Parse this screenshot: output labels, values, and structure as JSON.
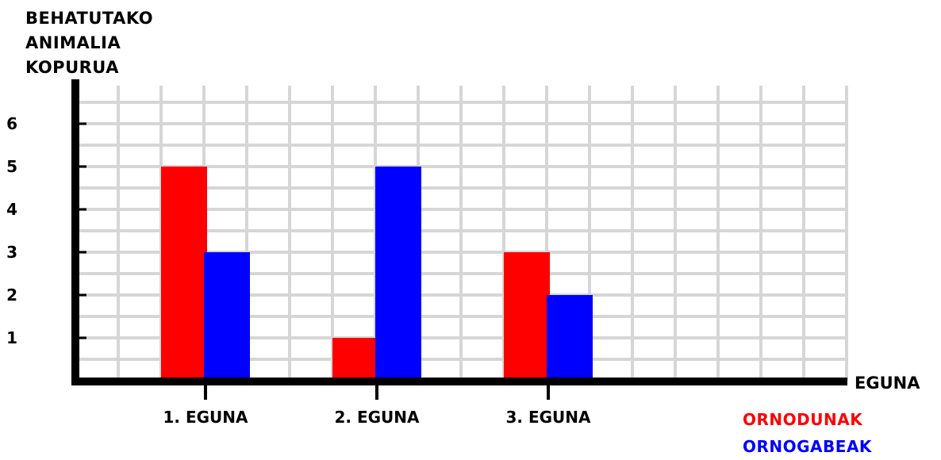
{
  "chart_data": {
    "type": "bar",
    "ylabel_lines": [
      "BEHATUTAKO",
      "ANIMALIA",
      "KOPURUA"
    ],
    "xlabel": "EGUNA",
    "categories": [
      "1. EGUNA",
      "2. EGUNA",
      "3. EGUNA"
    ],
    "yticks": [
      1,
      2,
      3,
      4,
      5,
      6
    ],
    "ylim": [
      0,
      6.7
    ],
    "grid": true,
    "legend_position": "bottom-right",
    "series": [
      {
        "name": "ORNODUNAK",
        "color": "#ff0000",
        "values": [
          5,
          1,
          3
        ]
      },
      {
        "name": "ORNOGABEAK",
        "color": "#0000ff",
        "values": [
          3,
          5,
          2
        ]
      }
    ]
  }
}
